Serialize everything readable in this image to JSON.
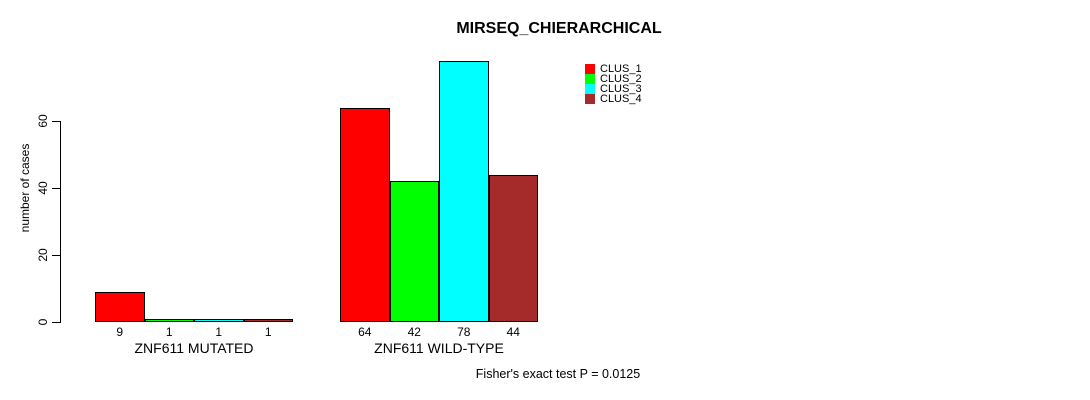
{
  "chart_data": {
    "type": "bar",
    "title": "MIRSEQ_CHIERARCHICAL",
    "ylabel": "number of cases",
    "xlabel": "",
    "yticks": [
      0,
      20,
      40,
      60
    ],
    "ylim": [
      0,
      78
    ],
    "grid": false,
    "legend_position": "top-right",
    "categories": [
      "ZNF611 MUTATED",
      "ZNF611 WILD-TYPE"
    ],
    "series": [
      {
        "name": "CLUS_1",
        "color": "#ff0000",
        "values": [
          9,
          64
        ]
      },
      {
        "name": "CLUS_2",
        "color": "#00ff00",
        "values": [
          1,
          42
        ]
      },
      {
        "name": "CLUS_3",
        "color": "#00ffff",
        "values": [
          1,
          78
        ]
      },
      {
        "name": "CLUS_4",
        "color": "#a52a2a",
        "values": [
          1,
          44
        ]
      }
    ],
    "bar_value_labels_shown": true,
    "annotation": "Fisher's exact test P = 0.0125",
    "colors": {
      "background": "#ffffff",
      "axis": "#000000",
      "text": "#000000"
    }
  }
}
